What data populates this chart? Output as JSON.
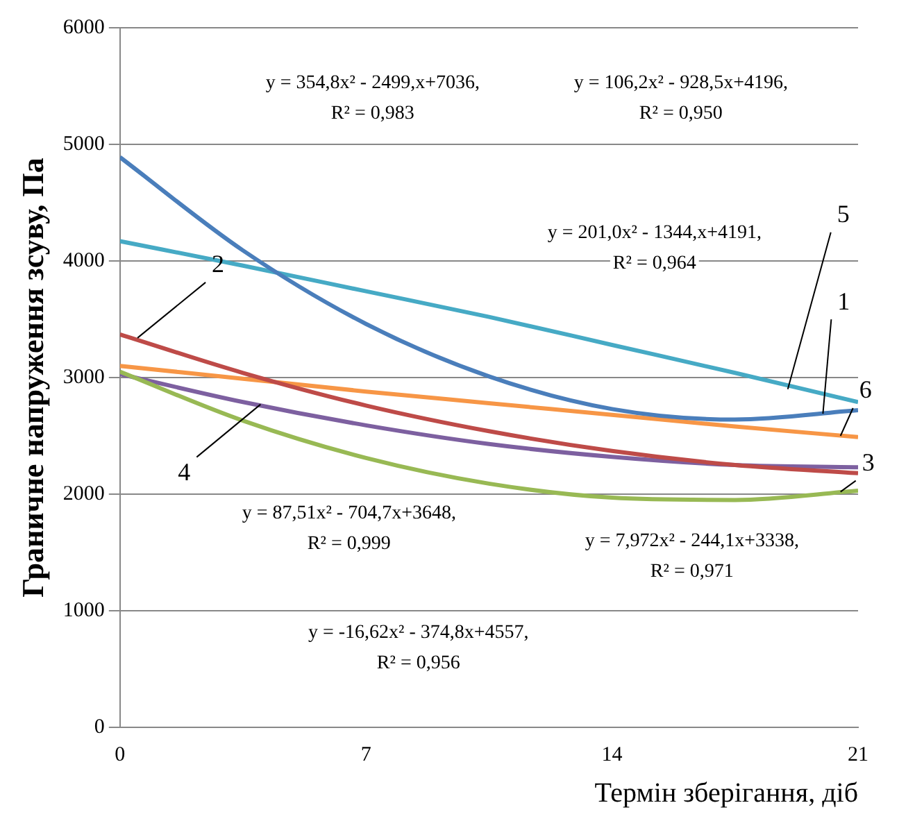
{
  "chart_data": {
    "type": "line",
    "xlabel": "Термін зберігання, діб",
    "ylabel": "Граничне напруження зсуву, Па",
    "x": [
      0,
      3.5,
      7,
      10.5,
      14,
      17.5,
      21
    ],
    "xlim": [
      0,
      21
    ],
    "xticks": [
      0,
      7,
      14,
      21
    ],
    "ylim": [
      0,
      6000
    ],
    "yticks": [
      0,
      1000,
      2000,
      3000,
      4000,
      5000,
      6000
    ],
    "grid": "y",
    "legend": false,
    "marker": "none",
    "line_style": "solid",
    "series": [
      {
        "color": "#4a7ebb",
        "values": [
          4890,
          4090,
          3460,
          3010,
          2730,
          2640,
          2720
        ]
      },
      {
        "color": "#be4b48",
        "values": [
          3370,
          3040,
          2760,
          2540,
          2370,
          2250,
          2180
        ]
      },
      {
        "color": "#98b954",
        "values": [
          3050,
          2630,
          2310,
          2090,
          1970,
          1950,
          2030
        ]
      },
      {
        "color": "#7d60a0",
        "values": [
          3030,
          2790,
          2590,
          2430,
          2320,
          2250,
          2230
        ]
      },
      {
        "color": "#46aac5",
        "values": [
          4170,
          3960,
          3740,
          3520,
          3280,
          3040,
          2790
        ]
      },
      {
        "color": "#f79646",
        "values": [
          3100,
          2990,
          2880,
          2780,
          2680,
          2580,
          2490
        ]
      }
    ],
    "annotations": [
      "y = 354,8x² - 2499,x+7036,\nR² = 0,983",
      "y = 106,2x² - 928,5x+4196,\nR² = 0,950",
      "y = 201,0x² - 1344,x+4191,\nR² = 0,964",
      "y = 87,51x² - 704,7x+3648,\nR² = 0,999",
      "y = 7,972x² - 244,1x+3338,\nR² = 0,971",
      "y = -16,62x² - 374,8x+4557,\nR² = 0,956",
      {
        "text": "1",
        "x": 20,
        "y": 2690
      },
      {
        "text": "2",
        "x": 0.5,
        "y": 3340
      },
      {
        "text": "3",
        "x": 20.5,
        "y": 2020
      },
      {
        "text": "4",
        "x": 4,
        "y": 2770
      },
      {
        "text": "5",
        "x": 19,
        "y": 2900
      },
      {
        "text": "6",
        "x": 20.5,
        "y": 2500
      }
    ]
  }
}
